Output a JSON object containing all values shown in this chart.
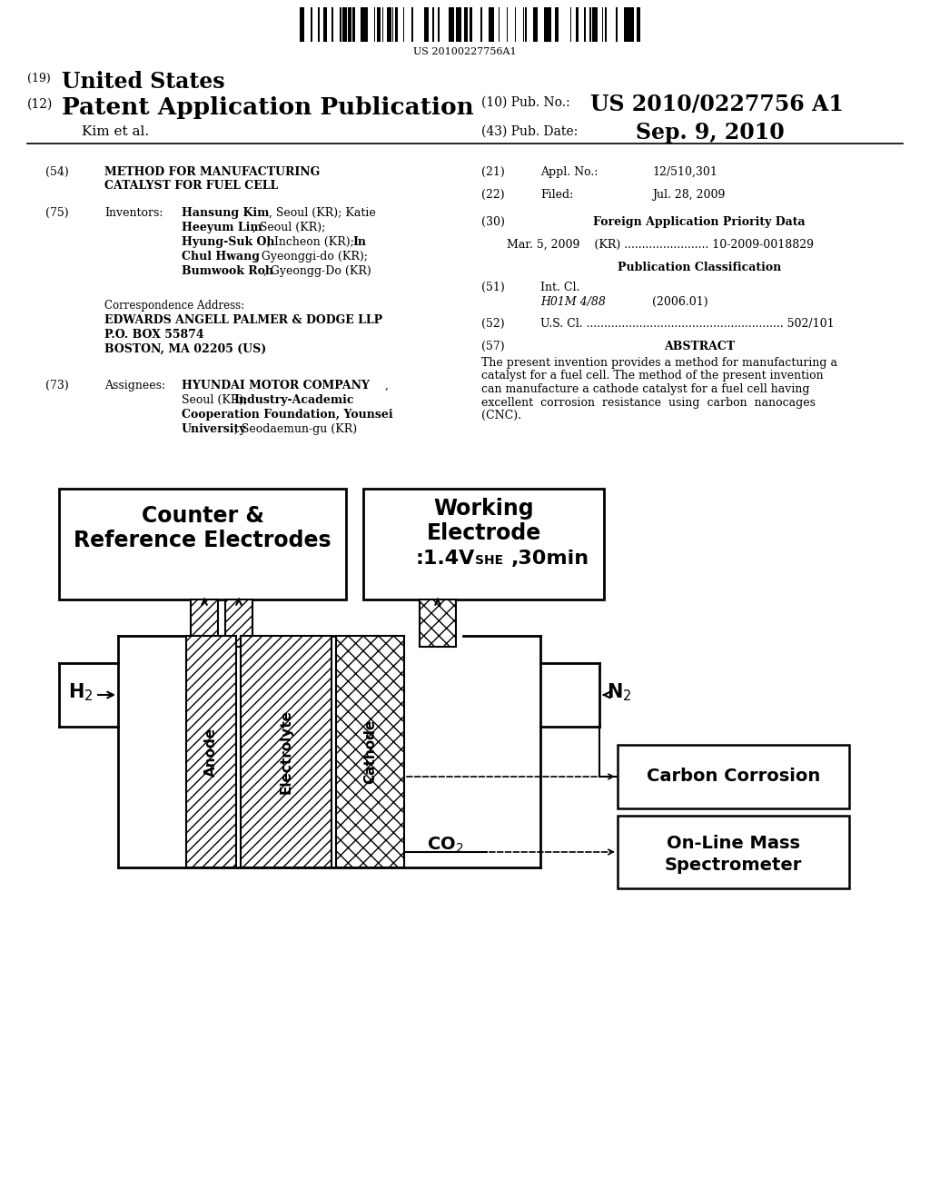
{
  "barcode_text": "US 20100227756A1",
  "patent_number": "US 2010/0227756 A1",
  "pub_date": "Sep. 9, 2010",
  "bg_color": "#ffffff"
}
